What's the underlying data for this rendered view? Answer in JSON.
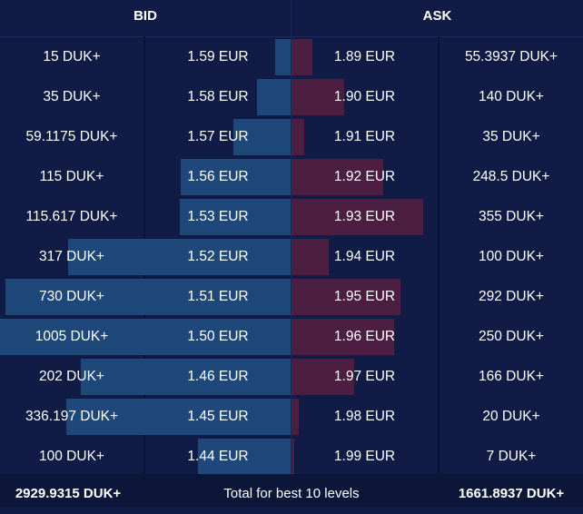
{
  "header": {
    "bid_label": "BID",
    "ask_label": "ASK"
  },
  "colors": {
    "background": "#101c45",
    "bid_bar": "#1d4879",
    "ask_bar": "#4b1e42"
  },
  "rows": [
    {
      "bid_qty": "15 DUK+",
      "bid_price": "1.59 EUR",
      "ask_price": "1.89 EUR",
      "ask_qty": "55.3937 DUK+",
      "bid_depth": 0.052,
      "ask_depth": 0.071
    },
    {
      "bid_qty": "35 DUK+",
      "bid_price": "1.58 EUR",
      "ask_price": "1.90 EUR",
      "ask_qty": "140 DUK+",
      "bid_depth": 0.115,
      "ask_depth": 0.182
    },
    {
      "bid_qty": "59.1175 DUK+",
      "bid_price": "1.57 EUR",
      "ask_price": "1.91 EUR",
      "ask_qty": "35 DUK+",
      "bid_depth": 0.198,
      "ask_depth": 0.045
    },
    {
      "bid_qty": "115 DUK+",
      "bid_price": "1.56 EUR",
      "ask_price": "1.92 EUR",
      "ask_qty": "248.5 DUK+",
      "bid_depth": 0.378,
      "ask_depth": 0.316
    },
    {
      "bid_qty": "115.617 DUK+",
      "bid_price": "1.53 EUR",
      "ask_price": "1.93 EUR",
      "ask_qty": "355 DUK+",
      "bid_depth": 0.381,
      "ask_depth": 0.452
    },
    {
      "bid_qty": "317 DUK+",
      "bid_price": "1.52 EUR",
      "ask_price": "1.94 EUR",
      "ask_qty": "100 DUK+",
      "bid_depth": 0.765,
      "ask_depth": 0.128
    },
    {
      "bid_qty": "730 DUK+",
      "bid_price": "1.51 EUR",
      "ask_price": "1.95 EUR",
      "ask_qty": "292 DUK+",
      "bid_depth": 0.98,
      "ask_depth": 0.374
    },
    {
      "bid_qty": "1005 DUK+",
      "bid_price": "1.50 EUR",
      "ask_price": "1.96 EUR",
      "ask_qty": "250 DUK+",
      "bid_depth": 1.0,
      "ask_depth": 0.352
    },
    {
      "bid_qty": "202 DUK+",
      "bid_price": "1.46 EUR",
      "ask_price": "1.97 EUR",
      "ask_qty": "166 DUK+",
      "bid_depth": 0.722,
      "ask_depth": 0.215
    },
    {
      "bid_qty": "336.197 DUK+",
      "bid_price": "1.45 EUR",
      "ask_price": "1.98 EUR",
      "ask_qty": "20 DUK+",
      "bid_depth": 0.772,
      "ask_depth": 0.026
    },
    {
      "bid_qty": "100 DUK+",
      "bid_price": "1.44 EUR",
      "ask_price": "1.99 EUR",
      "ask_qty": "7 DUK+",
      "bid_depth": 0.319,
      "ask_depth": 0.01
    }
  ],
  "footer": {
    "bid_total": "2929.9315 DUK+",
    "label": "Total for best 10 levels",
    "ask_total": "1661.8937 DUK+"
  }
}
